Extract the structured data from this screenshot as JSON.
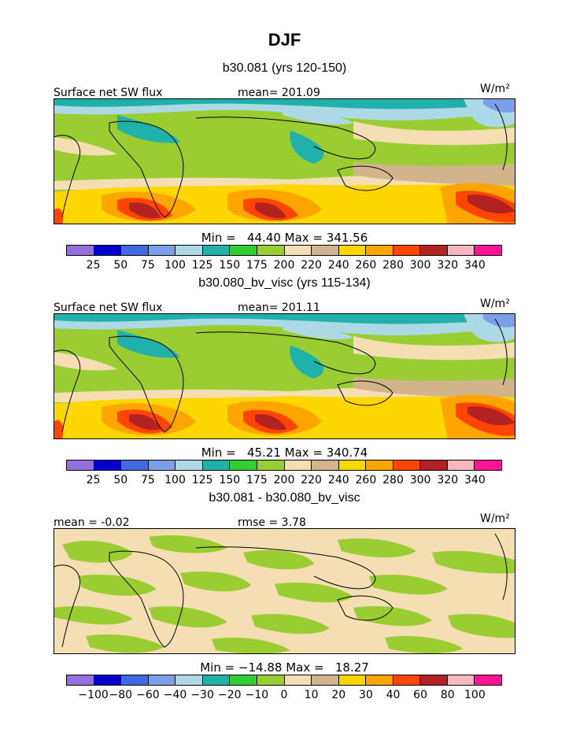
{
  "title": "DJF",
  "panels": [
    {
      "subtitle": "b30.081 (yrs 120-150)",
      "left_label": "Surface net SW flux",
      "center_label": "mean= 201.09",
      "units": "W/m²",
      "minmax": "Min =   44.40 Max = 341.56",
      "ticks": [
        "25",
        "50",
        "75",
        "100",
        "125",
        "150",
        "175",
        "200",
        "220",
        "240",
        "260",
        "280",
        "300",
        "320",
        "340"
      ]
    },
    {
      "subtitle": "b30.080_bv_visc (yrs 115-134)",
      "left_label": "Surface net SW flux",
      "center_label": "mean= 201.11",
      "units": "W/m²",
      "minmax": "Min =   45.21 Max = 340.74",
      "ticks": [
        "25",
        "50",
        "75",
        "100",
        "125",
        "150",
        "175",
        "200",
        "220",
        "240",
        "260",
        "280",
        "300",
        "320",
        "340"
      ]
    },
    {
      "subtitle": "b30.081 - b30.080_bv_visc",
      "left_label": "mean =   -0.02",
      "center_label": "rmse =   3.78",
      "units": "W/m²",
      "minmax": "Min = −14.88 Max =   18.27",
      "ticks": [
        "−100",
        "−80",
        "−60",
        "−40",
        "−30",
        "−20",
        "−10",
        "0",
        "10",
        "20",
        "30",
        "40",
        "60",
        "80",
        "100"
      ]
    }
  ],
  "colorbar_colors": [
    "#9370db",
    "#0000cd",
    "#4169e1",
    "#7b9fe8",
    "#add8e6",
    "#20b2aa",
    "#32cd32",
    "#9acd32",
    "#f5deb3",
    "#d2b48c",
    "#ffd700",
    "#ffa500",
    "#ff4500",
    "#b22222",
    "#ffb6c1",
    "#ff1493"
  ]
}
